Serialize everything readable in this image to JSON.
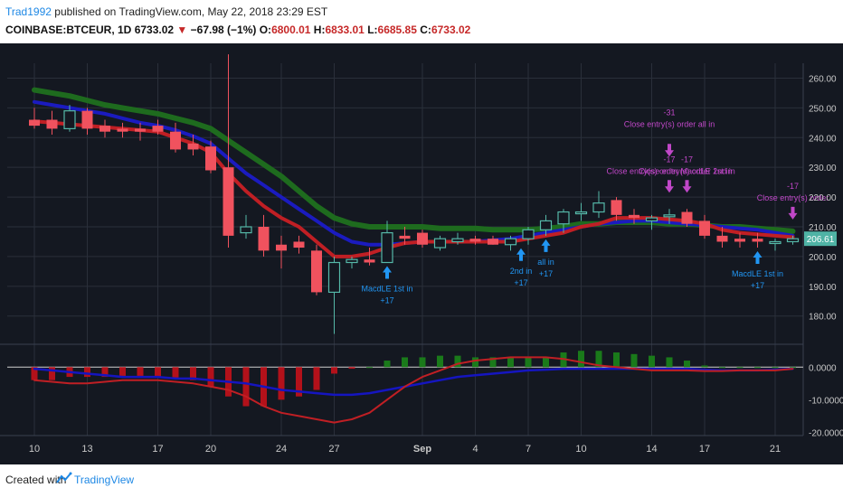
{
  "header": {
    "author": "Trad1992",
    "published": " published on TradingView.com, May 22, 2018 23:29 EST",
    "symbol": "COINBASE:BTCEUR, 1D",
    "last": "6733.02",
    "change": "−67.98 (−1%)",
    "o_label": "O:",
    "o_value": "6800.01",
    "h_label": "H:",
    "h_value": "6833.01",
    "l_label": "L:",
    "l_value": "6685.85",
    "c_label": "C:",
    "c_value": "6733.02",
    "down_icon": "triangle-down-icon"
  },
  "footer": {
    "created_with": "Created with",
    "brand": "TradingView",
    "logo_icon": "tradingview-logo-icon"
  },
  "colors": {
    "background": "#141821",
    "up": "#55b8a8",
    "down": "#f0525e",
    "ema_fast": "#c01f24",
    "ema_mid": "#1b1bbf",
    "ema_slow": "#1e6b1e",
    "hist_up": "#1a7a1a",
    "hist_down": "#b3111a",
    "macd": "#1515c0",
    "signal": "#c01f24",
    "annotation": "#2196f3",
    "exit": "#c047c8",
    "price_tag": "#4fb3a5"
  },
  "chart_data": {
    "type": "candlestick",
    "price_axis": {
      "ticks": [
        "260.00",
        "250.00",
        "240.00",
        "230.00",
        "220.00",
        "210.00",
        "200.00",
        "190.00",
        "180.00"
      ],
      "values": [
        260,
        250,
        240,
        230,
        220,
        210,
        200,
        190,
        180
      ],
      "range": [
        170.5,
        265
      ]
    },
    "current_price_tag": "206.61",
    "x_ticks": [
      {
        "label": "10",
        "day": 0
      },
      {
        "label": "13",
        "day": 3
      },
      {
        "label": "17",
        "day": 7
      },
      {
        "label": "20",
        "day": 10
      },
      {
        "label": "24",
        "day": 14
      },
      {
        "label": "27",
        "day": 17
      },
      {
        "label": "Sep",
        "day": 22
      },
      {
        "label": "4",
        "day": 25
      },
      {
        "label": "7",
        "day": 28
      },
      {
        "label": "10",
        "day": 31
      },
      {
        "label": "14",
        "day": 35
      },
      {
        "label": "17",
        "day": 38
      },
      {
        "label": "21",
        "day": 42
      }
    ],
    "candles": [
      {
        "o": 246,
        "h": 250,
        "l": 243,
        "c": 244
      },
      {
        "o": 246,
        "h": 249,
        "l": 241,
        "c": 243
      },
      {
        "o": 243,
        "h": 251,
        "l": 242,
        "c": 249
      },
      {
        "o": 249,
        "h": 250,
        "l": 241,
        "c": 243
      },
      {
        "o": 244,
        "h": 246,
        "l": 240,
        "c": 242
      },
      {
        "o": 243,
        "h": 245,
        "l": 240,
        "c": 242
      },
      {
        "o": 243,
        "h": 245,
        "l": 239,
        "c": 242
      },
      {
        "o": 244,
        "h": 246,
        "l": 241,
        "c": 242
      },
      {
        "o": 242,
        "h": 245,
        "l": 235,
        "c": 236
      },
      {
        "o": 238,
        "h": 241,
        "l": 234,
        "c": 236
      },
      {
        "o": 237,
        "h": 239,
        "l": 228,
        "c": 229
      },
      {
        "o": 230,
        "h": 268,
        "l": 203,
        "c": 207
      },
      {
        "o": 208,
        "h": 214,
        "l": 206,
        "c": 210
      },
      {
        "o": 210,
        "h": 214,
        "l": 200,
        "c": 202
      },
      {
        "o": 204,
        "h": 207,
        "l": 196,
        "c": 202
      },
      {
        "o": 205,
        "h": 207,
        "l": 201,
        "c": 203
      },
      {
        "o": 202,
        "h": 204,
        "l": 187,
        "c": 188
      },
      {
        "o": 188,
        "h": 200,
        "l": 174,
        "c": 198
      },
      {
        "o": 198,
        "h": 200,
        "l": 196,
        "c": 199
      },
      {
        "o": 199,
        "h": 203,
        "l": 197,
        "c": 198
      },
      {
        "o": 198,
        "h": 212,
        "l": 198,
        "c": 208
      },
      {
        "o": 207,
        "h": 210,
        "l": 204,
        "c": 206
      },
      {
        "o": 208,
        "h": 209,
        "l": 203,
        "c": 204
      },
      {
        "o": 203,
        "h": 207,
        "l": 202,
        "c": 206
      },
      {
        "o": 205,
        "h": 208,
        "l": 204,
        "c": 206
      },
      {
        "o": 206,
        "h": 207,
        "l": 204,
        "c": 205
      },
      {
        "o": 206,
        "h": 207,
        "l": 204,
        "c": 204
      },
      {
        "o": 204,
        "h": 207,
        "l": 202,
        "c": 206
      },
      {
        "o": 206,
        "h": 210,
        "l": 204,
        "c": 209
      },
      {
        "o": 209,
        "h": 214,
        "l": 207,
        "c": 212
      },
      {
        "o": 211,
        "h": 216,
        "l": 208,
        "c": 215
      },
      {
        "o": 215,
        "h": 218,
        "l": 212,
        "c": 215
      },
      {
        "o": 215,
        "h": 222,
        "l": 213,
        "c": 218
      },
      {
        "o": 219,
        "h": 220,
        "l": 212,
        "c": 214
      },
      {
        "o": 214,
        "h": 216,
        "l": 211,
        "c": 213
      },
      {
        "o": 212,
        "h": 214,
        "l": 209,
        "c": 213
      },
      {
        "o": 214,
        "h": 216,
        "l": 211,
        "c": 214
      },
      {
        "o": 215,
        "h": 216,
        "l": 210,
        "c": 211
      },
      {
        "o": 212,
        "h": 214,
        "l": 206,
        "c": 207
      },
      {
        "o": 207,
        "h": 210,
        "l": 203,
        "c": 205
      },
      {
        "o": 206,
        "h": 208,
        "l": 203,
        "c": 205
      },
      {
        "o": 206,
        "h": 208,
        "l": 203,
        "c": 205
      },
      {
        "o": 205,
        "h": 206,
        "l": 202,
        "c": 205
      },
      {
        "o": 205,
        "h": 207,
        "l": 204,
        "c": 206
      }
    ],
    "indicators": {
      "ema_fast": [
        245.5,
        245,
        244.5,
        244,
        243.5,
        243,
        242.5,
        242,
        240,
        238,
        235,
        228,
        222,
        217,
        213,
        210,
        205,
        200,
        200,
        201,
        203,
        204.5,
        205,
        205,
        205,
        205,
        205,
        205,
        206,
        207,
        208,
        210,
        211,
        213,
        213,
        213,
        212.5,
        212,
        211,
        209,
        208,
        207.5,
        207,
        206.5
      ],
      "ema_mid": [
        252,
        251,
        250,
        249,
        248,
        246.5,
        245,
        244,
        242.5,
        240.5,
        238,
        233,
        228,
        224,
        220,
        216,
        212,
        208,
        205,
        204,
        204,
        204.5,
        205,
        205,
        205,
        205,
        205.5,
        206,
        207,
        208,
        209,
        210,
        211,
        211.5,
        212,
        212,
        211.5,
        211,
        210.5,
        210,
        209.5,
        209,
        208,
        207
      ],
      "ema_slow": [
        256,
        255,
        254,
        252.5,
        251,
        250,
        249,
        248,
        246.5,
        245,
        243,
        239,
        235,
        231,
        227,
        222,
        217,
        213,
        211,
        210,
        210,
        210,
        210,
        209.5,
        209.5,
        209.5,
        209,
        209,
        209,
        209.5,
        210,
        211,
        211,
        211.5,
        211.5,
        211.5,
        211,
        211,
        210.5,
        210,
        210,
        209.5,
        209,
        208.5
      ]
    },
    "annotations": [
      {
        "day": 20,
        "arrow": "up",
        "lines": [
          "MacdLE 1st in",
          "+17"
        ],
        "color": "annotation"
      },
      {
        "day": 28,
        "arrow": "up",
        "lines": [
          "2nd in",
          "+17"
        ],
        "color": "annotation",
        "offset": -1
      },
      {
        "day": 29,
        "arrow": "up",
        "lines": [
          "all in",
          "+17"
        ],
        "color": "annotation"
      },
      {
        "day": 41,
        "arrow": "up",
        "lines": [
          "MacdLE 1st in",
          "+17"
        ],
        "color": "annotation"
      },
      {
        "day": 36,
        "arrow": "down",
        "lines": [
          "-31",
          "Close entry(s) order all in"
        ],
        "color": "exit",
        "stack": "high"
      },
      {
        "day": 36,
        "arrow": "down",
        "lines": [
          "-17",
          "Close entry(s) order MacdLE 1st in"
        ],
        "color": "exit",
        "stack": "low"
      },
      {
        "day": 37,
        "arrow": "down",
        "lines": [
          "-17",
          "Close entry(s) order 2nd in"
        ],
        "color": "exit",
        "stack": "low"
      },
      {
        "day": 43,
        "arrow": "down",
        "lines": [
          "-17",
          "Close entry(s) order"
        ],
        "color": "exit",
        "stack": "low"
      }
    ],
    "macd_axis": {
      "ticks": [
        "0.0000",
        "-10.0000",
        "-20.0000"
      ],
      "values": [
        0,
        -10,
        -20
      ],
      "range": [
        -21,
        7
      ]
    },
    "histogram": [
      -4,
      -4,
      -3,
      -3,
      -3,
      -3,
      -3,
      -3,
      -3.5,
      -4,
      -6,
      -9,
      -12,
      -12,
      -10,
      -9,
      -7,
      -2,
      -0.5,
      0,
      2,
      3,
      3,
      3.5,
      3.5,
      3,
      3,
      3,
      3,
      3,
      4.5,
      5,
      5,
      4.5,
      4,
      3.5,
      3,
      2,
      0.5,
      0,
      0,
      0,
      0,
      0
    ],
    "macd": [
      -0.5,
      -1,
      -1.5,
      -2,
      -2.5,
      -3,
      -3,
      -3,
      -3.5,
      -3.5,
      -4,
      -4.5,
      -5,
      -6,
      -7,
      -7.5,
      -8,
      -8.5,
      -8.5,
      -8,
      -7,
      -6,
      -5,
      -4,
      -3,
      -2.5,
      -2,
      -1.5,
      -1,
      -0.8,
      -0.5,
      -0.5,
      -0.5,
      -0.5,
      -0.5,
      -0.5,
      -0.5,
      -0.5,
      -0.8,
      -1,
      -1,
      -1,
      -0.8,
      -0.5
    ],
    "signal": [
      -4,
      -4.5,
      -5,
      -5,
      -4.5,
      -4,
      -4,
      -4,
      -4.5,
      -5,
      -6,
      -7,
      -9,
      -12,
      -14,
      -15,
      -16,
      -17,
      -16,
      -14,
      -10,
      -6,
      -3,
      -1,
      1,
      2,
      2.5,
      3,
      3,
      3,
      2.5,
      1.5,
      0.5,
      0,
      -0.5,
      -1,
      -1,
      -1,
      -1.2,
      -1.2,
      -1,
      -1,
      -1,
      -0.5
    ]
  }
}
